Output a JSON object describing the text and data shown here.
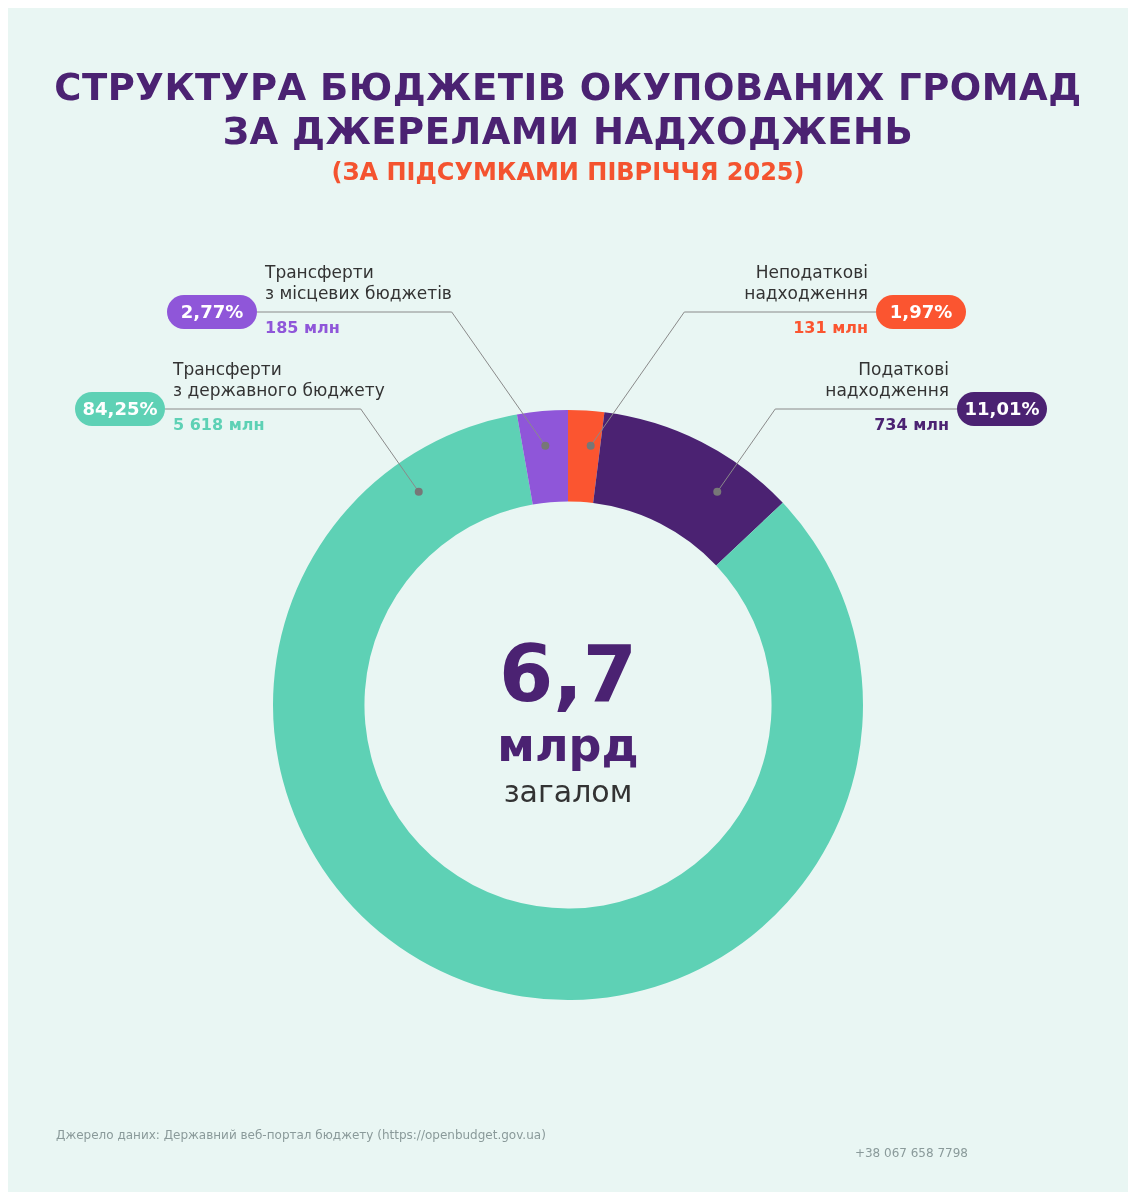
{
  "chart_data": {
    "type": "donut",
    "title": "СТРУКТУРА БЮДЖЕТІВ ОКУПОВАНИХ ГРОМАД\nЗА ДЖЕРЕЛАМИ НАДХОДЖЕНЬ",
    "subtitle": "(ЗА ПІДСУМКАМИ ПІВРІЧЧЯ 2025)",
    "categories": [
      "Неподаткові\nнадходження",
      "Податкові\nнадходження",
      "Трансферти\nз державного бюджету",
      "Трансферти\nз місцевих бюджетів"
    ],
    "values": [
      1.97,
      11.01,
      84.25,
      2.77
    ],
    "colors": [
      "#fb5530",
      "#4b2272",
      "#5ed1b5",
      "#8f56d9"
    ],
    "value_labels": [
      "1,97%",
      "11,01%",
      "84,25%",
      "2,77%"
    ],
    "legend": false,
    "annotations": [
      "6,7\nмлрд",
      "загалом",
      "Джерело даних: Державний веб-портал бюджету (https://openbudget.gov.ua)",
      "+38 067 658 7798",
      {
        "text": "131 млн",
        "x": "Неподаткові\nнадходження"
      },
      {
        "text": "734 млн",
        "x": "Податкові\nнадходження"
      },
      {
        "text": "5 618 млн",
        "x": "Трансферти\nз державного бюджету"
      },
      {
        "text": "185 млн",
        "x": "Трансферти\nз місцевих бюджетів"
      }
    ]
  }
}
